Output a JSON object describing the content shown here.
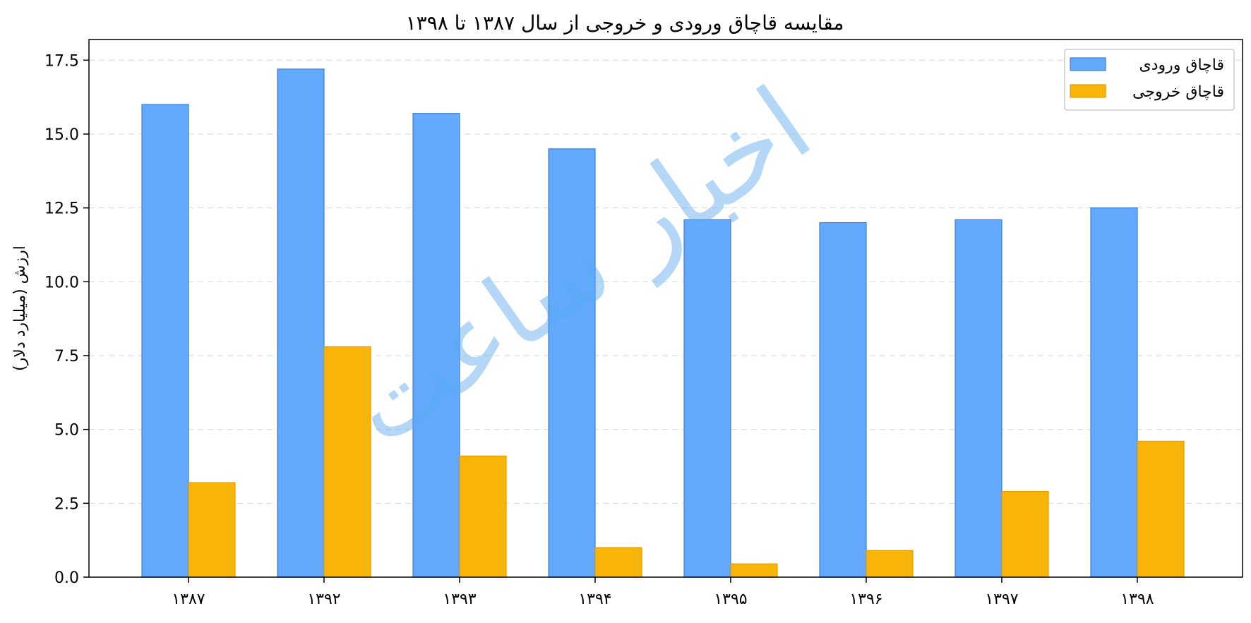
{
  "chart_data": {
    "type": "bar",
    "title": "مقایسه قاچاق ورودی و خروجی از سال ۱۳۸۷ تا ۱۳۹۸",
    "xlabel": "",
    "ylabel": "ارزش (میلیارد دلار)",
    "ylim": [
      0,
      18.2
    ],
    "yticks": [
      "0.0",
      "2.5",
      "5.0",
      "7.5",
      "10.0",
      "12.5",
      "15.0",
      "17.5"
    ],
    "ytick_values": [
      0,
      2.5,
      5,
      7.5,
      10,
      12.5,
      15,
      17.5
    ],
    "grid": true,
    "legend_position": "top-right",
    "categories": [
      "۱۳۸۷",
      "۱۳۹۲",
      "۱۳۹۳",
      "۱۳۹۴",
      "۱۳۹۵",
      "۱۳۹۶",
      "۱۳۹۷",
      "۱۳۹۸"
    ],
    "series": [
      {
        "name": "قاچاق ورودی",
        "color": "#63aaff",
        "edge": "#3d7fd6",
        "values": [
          16.0,
          17.2,
          15.7,
          14.5,
          12.1,
          12.0,
          12.1,
          12.5
        ]
      },
      {
        "name": "قاچاق خروجی",
        "color": "#f9b507",
        "edge": "#e39c00",
        "values": [
          3.2,
          7.8,
          4.1,
          1.0,
          0.45,
          0.9,
          2.9,
          4.6
        ]
      }
    ],
    "watermark": "اخبار ساعت"
  }
}
